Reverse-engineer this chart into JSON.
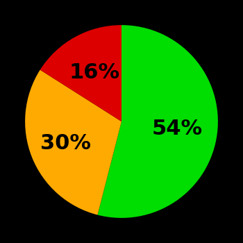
{
  "slices": [
    54,
    30,
    16
  ],
  "colors": [
    "#00dd00",
    "#ffaa00",
    "#dd0000"
  ],
  "labels": [
    "54%",
    "30%",
    "16%"
  ],
  "background_color": "#000000",
  "label_fontsize": 22,
  "label_fontweight": "bold",
  "startangle": 90,
  "counterclock": false,
  "label_radii": [
    0.58,
    0.62,
    0.58
  ]
}
